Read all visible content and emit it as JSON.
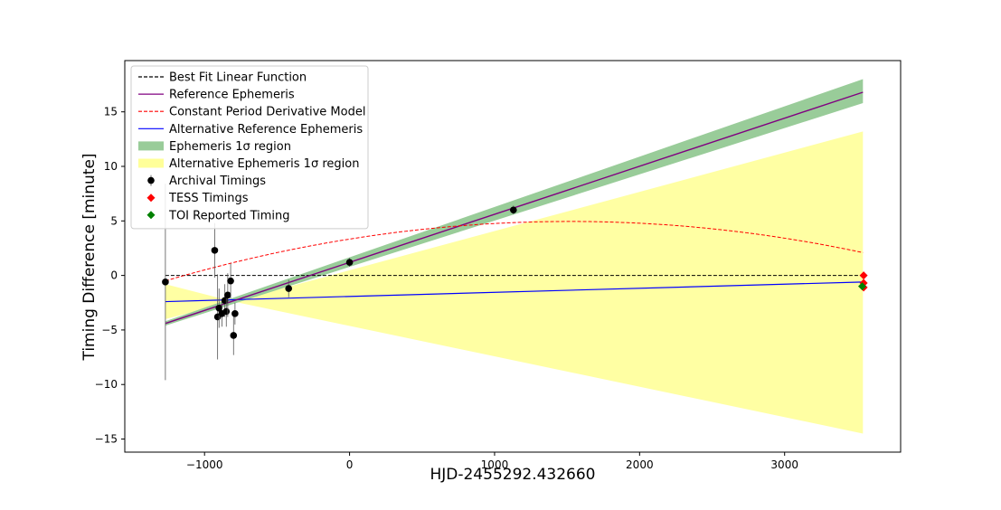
{
  "chart_data": {
    "type": "scatter",
    "xlabel": "HJD-2455292.432660",
    "ylabel": "Timing Difference [minute]",
    "xlim": [
      -1550,
      3800
    ],
    "ylim": [
      -16.2,
      19.7
    ],
    "x_ticks": [
      {
        "value": -1000,
        "label": "−1000"
      },
      {
        "value": 0,
        "label": "0"
      },
      {
        "value": 1000,
        "label": "1000"
      },
      {
        "value": 2000,
        "label": "2000"
      },
      {
        "value": 3000,
        "label": "3000"
      }
    ],
    "y_ticks": [
      {
        "value": -15,
        "label": "−15"
      },
      {
        "value": -10,
        "label": "−10"
      },
      {
        "value": -5,
        "label": "−5"
      },
      {
        "value": 0,
        "label": "0"
      },
      {
        "value": 5,
        "label": "5"
      },
      {
        "value": 10,
        "label": "10"
      },
      {
        "value": 15,
        "label": "15"
      }
    ],
    "legend_position": "upper-left",
    "legend": [
      {
        "label": "Best Fit Linear Function",
        "kind": "dashed-line",
        "color": "#000000"
      },
      {
        "label": "Reference Ephemeris",
        "kind": "line",
        "color": "#800080"
      },
      {
        "label": "Constant Period Derivative Model",
        "kind": "dashed-line",
        "color": "#ff0000"
      },
      {
        "label": "Alternative Reference Ephemeris",
        "kind": "line",
        "color": "#0000ff"
      },
      {
        "label": "Ephemeris 1σ region",
        "kind": "patch",
        "color": "#99cc99"
      },
      {
        "label": "Alternative Ephemeris 1σ region",
        "kind": "patch",
        "color": "#ffff99"
      },
      {
        "label": "Archival Timings",
        "kind": "marker-circle",
        "color": "#000000"
      },
      {
        "label": "TESS Timings",
        "kind": "marker-diamond",
        "color": "#ff0000"
      },
      {
        "label": "TOI Reported Timing",
        "kind": "marker-diamond",
        "color": "#008000"
      }
    ],
    "best_fit_linear": {
      "x": [
        -1270,
        3540
      ],
      "y": [
        0,
        0
      ],
      "color": "#000000"
    },
    "reference_ephemeris": {
      "x": [
        -1270,
        3540
      ],
      "y": [
        -4.4,
        16.8
      ],
      "color": "#800080"
    },
    "ephemeris_band": {
      "x": [
        -1270,
        3540
      ],
      "upper": [
        -4.2,
        18.0
      ],
      "lower": [
        -4.6,
        15.8
      ],
      "color": "#99cc99"
    },
    "alternative_reference_ephemeris": {
      "x": [
        -1270,
        3540
      ],
      "y": [
        -2.4,
        -0.6
      ],
      "color": "#0000ff"
    },
    "alternative_band": {
      "x": [
        -1270,
        -800,
        3540
      ],
      "upper": [
        -0.8,
        -2.4,
        13.2
      ],
      "lower": [
        -4.0,
        -2.4,
        -14.5
      ],
      "color": "#ffff99"
    },
    "constant_period_derivative": {
      "x0": 1520,
      "ymax": 4.95,
      "k": 7e-07,
      "x_range": [
        -1270,
        3540
      ],
      "color": "#ff0000"
    },
    "archival_timings": [
      {
        "x": -1270,
        "y": -0.6,
        "err": 9.0
      },
      {
        "x": -930,
        "y": 2.3,
        "err": 2.5
      },
      {
        "x": -910,
        "y": -3.8,
        "err": 3.9
      },
      {
        "x": -900,
        "y": -3.0,
        "err": 1.8
      },
      {
        "x": -880,
        "y": -3.5,
        "err": 1.2
      },
      {
        "x": -860,
        "y": -2.3,
        "err": 1.5
      },
      {
        "x": -850,
        "y": -3.3,
        "err": 1.4
      },
      {
        "x": -840,
        "y": -1.8,
        "err": 2.0
      },
      {
        "x": -820,
        "y": -0.5,
        "err": 1.6
      },
      {
        "x": -800,
        "y": -5.5,
        "err": 1.8
      },
      {
        "x": -790,
        "y": -3.5,
        "err": 1.0
      },
      {
        "x": -420,
        "y": -1.2,
        "err": 0.8
      },
      {
        "x": 0,
        "y": 1.2,
        "err": 0.4
      },
      {
        "x": 1130,
        "y": 6.0,
        "err": 0.4
      }
    ],
    "tess_timings": [
      {
        "x": 3545,
        "y": 0.0
      },
      {
        "x": 3545,
        "y": -0.7
      },
      {
        "x": 3545,
        "y": -1.1
      }
    ],
    "toi_reported_timing": [
      {
        "x": 3535,
        "y": -1.0
      }
    ]
  }
}
